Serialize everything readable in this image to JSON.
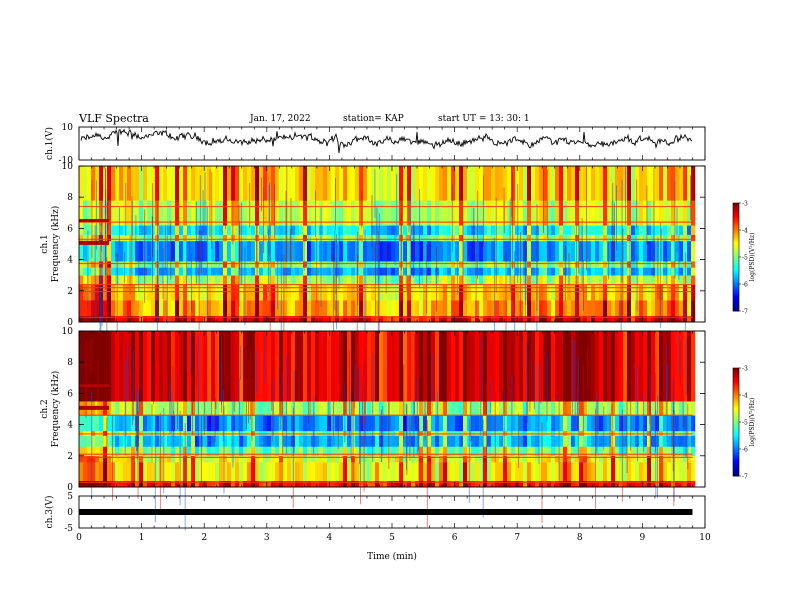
{
  "header": {
    "title": "VLF Spectra",
    "date": "Jan. 17, 2022",
    "station": "station= KAP",
    "start": "start  UT  =   13: 30: 1"
  },
  "chart_data": [
    {
      "type": "line",
      "ylabel": "ch.1(V)",
      "ylim": [
        -10,
        10
      ],
      "yticks": [
        "10",
        "-10"
      ],
      "xlim": [
        0,
        10
      ],
      "x_end": 9.8,
      "description_color": "#000000"
    },
    {
      "type": "heatmap",
      "ylabel": "ch.1 Frequency (kHz)",
      "ylim": [
        0,
        10
      ],
      "yticks": [
        "0",
        "2",
        "4",
        "6",
        "8",
        "10"
      ],
      "xlim": [
        0,
        10
      ],
      "x_end": 9.8,
      "colorbar": {
        "min": -7,
        "max": -3,
        "ticks": [
          "-3",
          "-4",
          "-5",
          "-6",
          "-7"
        ],
        "label": "log(PSD)(V²/Hz)"
      },
      "bands": [
        {
          "from": 0.0,
          "to": 0.4,
          "level": -3.5
        },
        {
          "from": 0.4,
          "to": 1.4,
          "level": -4.2
        },
        {
          "from": 1.4,
          "to": 2.4,
          "level": -4.4
        },
        {
          "from": 2.4,
          "to": 3.0,
          "level": -4.9
        },
        {
          "from": 3.0,
          "to": 3.5,
          "level": -5.8
        },
        {
          "from": 3.5,
          "to": 3.9,
          "level": -5.0
        },
        {
          "from": 3.9,
          "to": 5.2,
          "level": -6.0
        },
        {
          "from": 5.2,
          "to": 5.6,
          "level": -5.0
        },
        {
          "from": 5.6,
          "to": 6.2,
          "level": -5.6
        },
        {
          "from": 6.2,
          "to": 7.8,
          "level": -4.8
        },
        {
          "from": 7.8,
          "to": 10.0,
          "level": -4.4
        }
      ],
      "lines_khz": [
        0.3,
        1.95,
        2.2,
        2.4,
        3.75,
        5.3,
        6.4,
        7.4
      ]
    },
    {
      "type": "heatmap",
      "ylabel": "ch.2 Frequency (kHz)",
      "ylim": [
        0,
        10
      ],
      "yticks": [
        "0",
        "2",
        "4",
        "6",
        "8",
        "10"
      ],
      "xlim": [
        0,
        10
      ],
      "x_end": 9.8,
      "colorbar": {
        "min": -7,
        "max": -3,
        "ticks": [
          "-3",
          "-4",
          "-5",
          "-6",
          "-7"
        ],
        "label": "log(PSD)(V²/Hz)"
      },
      "bands": [
        {
          "from": 0.0,
          "to": 0.4,
          "level": -3.6
        },
        {
          "from": 0.4,
          "to": 1.6,
          "level": -4.5
        },
        {
          "from": 1.6,
          "to": 2.0,
          "level": -4.6
        },
        {
          "from": 2.0,
          "to": 2.6,
          "level": -5.1
        },
        {
          "from": 2.6,
          "to": 3.3,
          "level": -5.8
        },
        {
          "from": 3.3,
          "to": 3.6,
          "level": -5.1
        },
        {
          "from": 3.6,
          "to": 4.6,
          "level": -6.0
        },
        {
          "from": 4.6,
          "to": 5.5,
          "level": -4.9
        },
        {
          "from": 5.5,
          "to": 10.0,
          "level": -3.4
        }
      ],
      "lines_khz": [
        0.3,
        1.9,
        2.1,
        3.4,
        4.6
      ]
    },
    {
      "type": "line",
      "ylabel": "ch.3(V)",
      "ylim": [
        -5,
        5
      ],
      "yticks": [
        "5",
        "0",
        "-5"
      ],
      "xlim": [
        0,
        10
      ],
      "x_end": 9.8,
      "level": 0.0,
      "xlabel": "Time (min)",
      "xticks": [
        "0",
        "1",
        "2",
        "3",
        "4",
        "5",
        "6",
        "7",
        "8",
        "9",
        "10"
      ]
    }
  ]
}
